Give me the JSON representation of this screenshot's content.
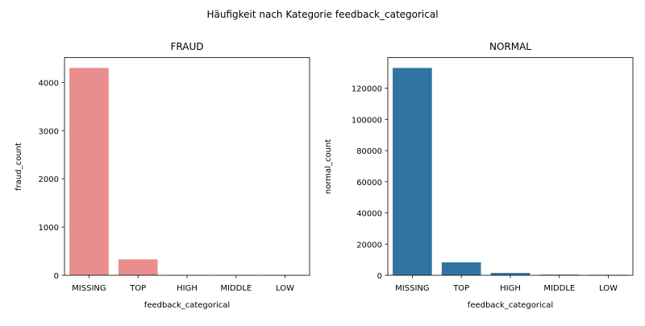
{
  "figure": {
    "suptitle": "Häufigkeit nach Kategorie feedback_categorical"
  },
  "chart_data": [
    {
      "type": "bar",
      "title": "FRAUD",
      "xlabel": "feedback_categorical",
      "ylabel": "fraud_count",
      "categories": [
        "MISSING",
        "TOP",
        "HIGH",
        "MIDDLE",
        "LOW"
      ],
      "values": [
        4300,
        330,
        8,
        5,
        4
      ],
      "ylim": [
        0,
        4515
      ],
      "yticks": [
        0,
        1000,
        2000,
        3000,
        4000
      ],
      "color": "#e88e8e",
      "grid": false
    },
    {
      "type": "bar",
      "title": "NORMAL",
      "xlabel": "feedback_categorical",
      "ylabel": "normal_count",
      "categories": [
        "MISSING",
        "TOP",
        "HIGH",
        "MIDDLE",
        "LOW"
      ],
      "values": [
        133000,
        8300,
        1500,
        400,
        300
      ],
      "ylim": [
        0,
        139650
      ],
      "yticks": [
        0,
        20000,
        40000,
        60000,
        80000,
        100000,
        120000
      ],
      "color": "#3274a1",
      "grid": false
    }
  ]
}
